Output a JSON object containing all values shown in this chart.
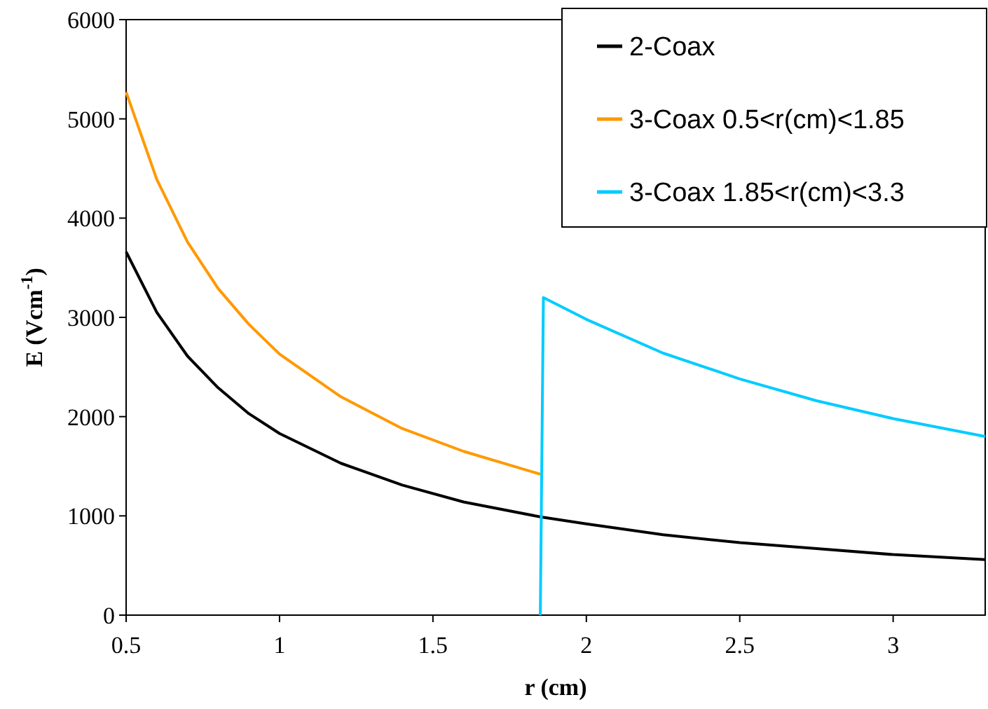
{
  "chart_data": {
    "type": "line",
    "xlabel": "r (cm)",
    "ylabel": "E (Vcm$^{-1}$)",
    "xlim": [
      0.5,
      3.3
    ],
    "xticks": [
      0.5,
      1,
      1.5,
      2,
      2.5,
      3
    ],
    "ylim": [
      0,
      6000
    ],
    "yticks": [
      0,
      1000,
      2000,
      3000,
      4000,
      5000,
      6000
    ],
    "grid": false,
    "legend": "top right",
    "marker": "none",
    "line_style": "solid",
    "series": [
      {
        "name": "2-Coax",
        "color": "#000000",
        "x": [
          0.5,
          0.6,
          0.7,
          0.8,
          0.9,
          1,
          1.2,
          1.4,
          1.6,
          1.85,
          2,
          2.25,
          2.5,
          2.75,
          3,
          3.3
        ],
        "values": [
          3660,
          3050,
          2610,
          2290,
          2030,
          1830,
          1530,
          1310,
          1140,
          990,
          920,
          810,
          730,
          670,
          610,
          560
        ]
      },
      {
        "name": "3-Coax 0.5<r(cm)<1.85",
        "color": "#ff9900",
        "x": [
          0.5,
          0.6,
          0.7,
          0.8,
          0.9,
          1,
          1.2,
          1.4,
          1.6,
          1.85
        ],
        "values": [
          5270,
          4390,
          3760,
          3290,
          2930,
          2630,
          2200,
          1880,
          1650,
          1420
        ]
      },
      {
        "name": "3-Coax 1.85<r(cm)<3.3",
        "color": "#00ccff",
        "x": [
          1.85,
          1.86,
          2,
          2.25,
          2.5,
          2.75,
          3,
          3.3
        ],
        "values": [
          0,
          3200,
          2980,
          2640,
          2380,
          2160,
          1980,
          1800
        ]
      }
    ]
  }
}
